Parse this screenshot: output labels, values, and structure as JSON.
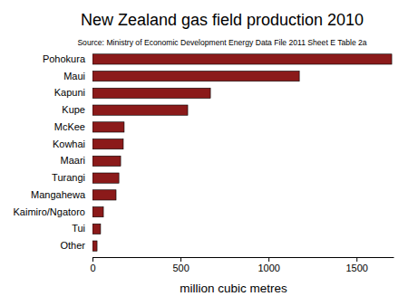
{
  "chart_data": {
    "type": "bar",
    "orientation": "horizontal",
    "title": "New Zealand gas field production 2010",
    "subtitle": "Source: Ministry of Economic Development Energy Data File 2011 Sheet E Table 2a",
    "xlabel": "million cubic metres",
    "categories": [
      "Pohokura",
      "Maui",
      "Kapuni",
      "Kupe",
      "McKee",
      "Kowhai",
      "Maari",
      "Turangi",
      "Mangahewa",
      "Kaimiro/Ngatoro",
      "Tui",
      "Other"
    ],
    "values": [
      1700,
      1175,
      670,
      541,
      180,
      175,
      160,
      150,
      134,
      62,
      46,
      26
    ],
    "color": "#8b1a1a",
    "xlim": [
      0,
      1710
    ],
    "xticks": [
      0,
      500,
      1000,
      1500
    ]
  }
}
